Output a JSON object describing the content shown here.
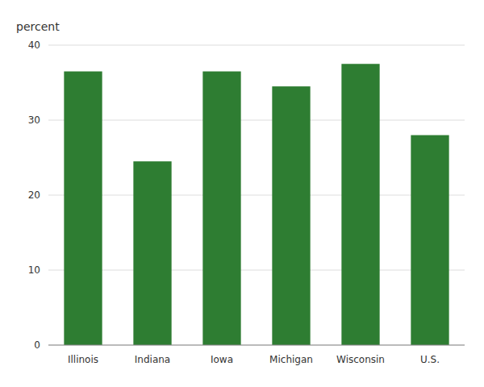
{
  "chart_data": {
    "type": "bar",
    "ylabel": "percent",
    "categories": [
      "Illinois",
      "Indiana",
      "Iowa",
      "Michigan",
      "Wisconsin",
      "U.S."
    ],
    "values": [
      36.5,
      24.5,
      36.5,
      34.5,
      37.5,
      28.0
    ],
    "color": "#2e7d32",
    "ylim": [
      0,
      40
    ],
    "yticks": [
      0,
      10,
      20,
      30,
      40
    ],
    "grid": true
  }
}
